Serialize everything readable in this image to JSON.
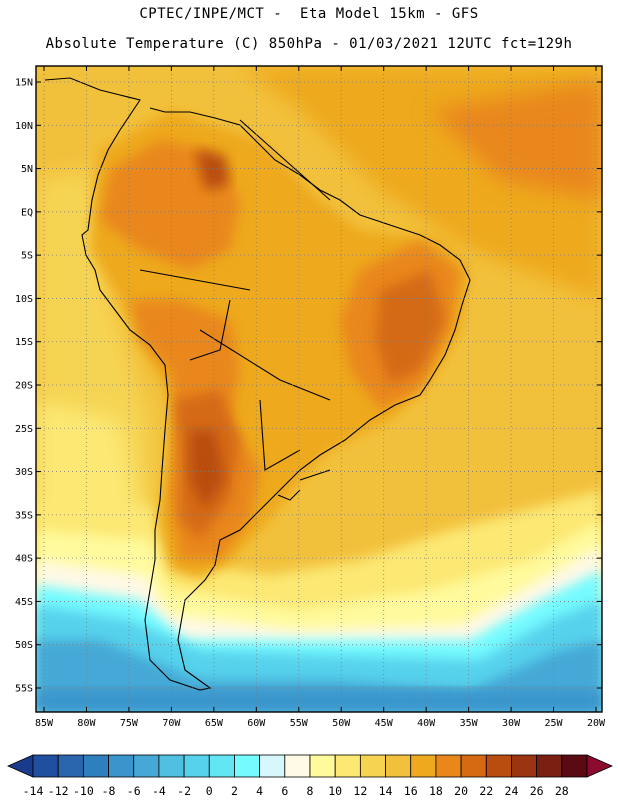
{
  "header": {
    "line1": "CPTEC/INPE/MCT -  Eta Model 15km - GFS",
    "line2": "Absolute Temperature (C) 850hPa - 01/03/2021 12UTC fct=129h"
  },
  "map": {
    "lat_labels": [
      "15N",
      "10N",
      "5N",
      "EQ",
      "5S",
      "10S",
      "15S",
      "20S",
      "25S",
      "30S",
      "35S",
      "40S",
      "45S",
      "50S",
      "55S"
    ],
    "lon_labels": [
      "85W",
      "80W",
      "75W",
      "70W",
      "65W",
      "60W",
      "55W",
      "50W",
      "45W",
      "40W",
      "35W",
      "30W",
      "25W",
      "20W"
    ],
    "lon_range": [
      -85,
      -20
    ],
    "lat_range": [
      -58,
      16
    ]
  },
  "colorbar": {
    "labels": [
      "-14",
      "-12",
      "-10",
      "-8",
      "-6",
      "-4",
      "-2",
      "0",
      "2",
      "4",
      "6",
      "8",
      "10",
      "12",
      "14",
      "16",
      "18",
      "20",
      "22",
      "24",
      "26",
      "28"
    ],
    "colors": [
      "#1a3a8c",
      "#1f4f9e",
      "#2a66ad",
      "#2f7fbf",
      "#3a95cc",
      "#45a8d6",
      "#4fbfe2",
      "#56d2ec",
      "#63e6f4",
      "#74fbff",
      "#d6f7fb",
      "#fff9e6",
      "#fffa9c",
      "#fce873",
      "#f6d452",
      "#f2c13c",
      "#eea91f",
      "#e9871a",
      "#d56a12",
      "#b94d0f",
      "#9b3410",
      "#7a1f12",
      "#5a0a12",
      "#8b0a2e"
    ]
  }
}
